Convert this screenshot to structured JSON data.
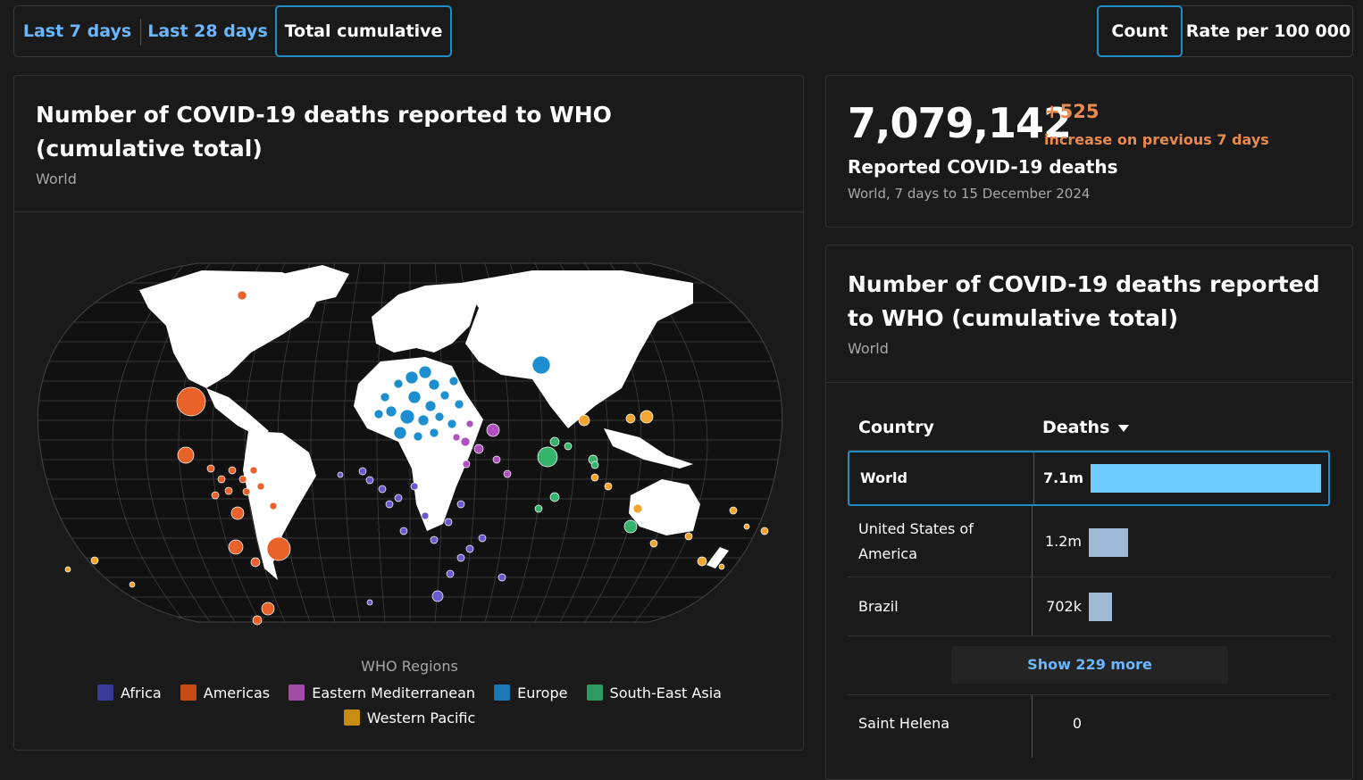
{
  "time_tabs": [
    {
      "label": "Last 7 days",
      "active": false
    },
    {
      "label": "Last 28 days",
      "active": false
    },
    {
      "label": "Total cumulative",
      "active": true
    }
  ],
  "metric_tabs": [
    {
      "label": "Count",
      "active": true
    },
    {
      "label": "Rate per 100 000",
      "active": false
    }
  ],
  "map_panel": {
    "title": "Number of COVID-19 deaths reported to WHO (cumulative total)",
    "subtitle": "World",
    "legend_title": "WHO Regions",
    "legend": [
      {
        "label": "Africa",
        "color": "#3a3a9a"
      },
      {
        "label": "Americas",
        "color": "#c84a15"
      },
      {
        "label": "Eastern Mediterranean",
        "color": "#a24aa8"
      },
      {
        "label": "Europe",
        "color": "#1a78b5"
      },
      {
        "label": "South-East Asia",
        "color": "#2d9a63"
      },
      {
        "label": "Western Pacific",
        "color": "#c88d15"
      }
    ]
  },
  "stat_panel": {
    "value": "7,079,142",
    "delta": "+525",
    "delta_note": "increase on previous 7 days",
    "label": "Reported COVID-19 deaths",
    "sub": "World, 7 days to 15 December 2024"
  },
  "table_panel": {
    "title": "Number of COVID-19 deaths reported to WHO (cumulative total)",
    "subtitle": "World",
    "col_country": "Country",
    "col_deaths": "Deaths",
    "rows": [
      {
        "country": "World",
        "value": "7.1m",
        "share": 1.0,
        "selected": true
      },
      {
        "country": "United States of America",
        "value": "1.2m",
        "share": 0.17,
        "selected": false
      },
      {
        "country": "Brazil",
        "value": "702k",
        "share": 0.099,
        "selected": false
      }
    ],
    "show_more": "Show 229 more",
    "last_row": {
      "country": "Saint Helena",
      "value": "0"
    }
  },
  "colors": {
    "background": "#1a1a1a",
    "accent": "#1e8ec6",
    "link": "#6ab7ff",
    "increase": "#e98a4e",
    "world_bar": "#6ecbff",
    "country_bar": "#9fb9d6"
  }
}
